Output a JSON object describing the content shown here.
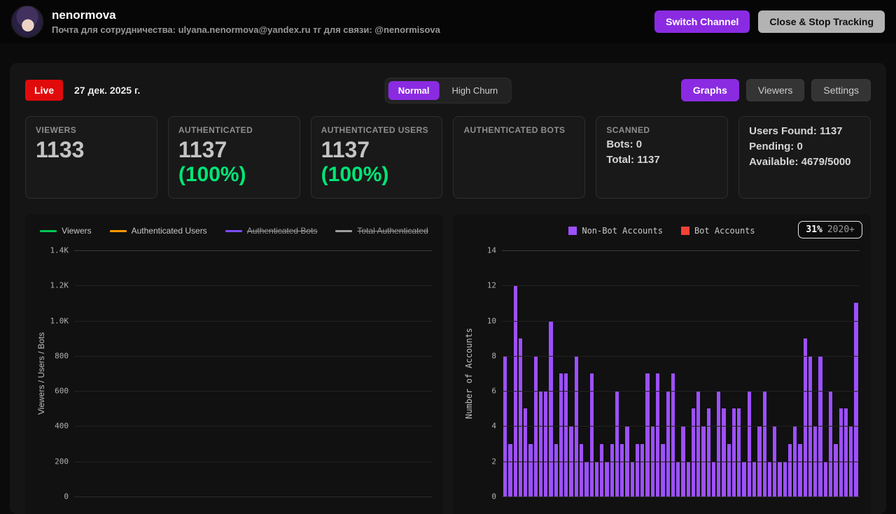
{
  "header": {
    "channel_name": "nenormova",
    "subtitle": "Почта для сотрудничества: ulyana.nenormova@yandex.ru тг для связи: @nenormisova",
    "switch_channel_label": "Switch Channel",
    "close_stop_label": "Close & Stop Tracking"
  },
  "controls": {
    "live_label": "Live",
    "date": "27 дек. 2025 г.",
    "mode_normal": "Normal",
    "mode_high_churn": "High Churn",
    "graphs_label": "Graphs",
    "viewers_label": "Viewers",
    "settings_label": "Settings"
  },
  "stats": {
    "viewers": {
      "label": "VIEWERS",
      "value": "1133"
    },
    "authenticated": {
      "label": "AUTHENTICATED",
      "value": "1137",
      "percent": "(100%)"
    },
    "authenticated_users": {
      "label": "AUTHENTICATED USERS",
      "value": "1137",
      "percent": "(100%)"
    },
    "authenticated_bots": {
      "label": "AUTHENTICATED BOTS"
    },
    "scanned": {
      "label": "SCANNED",
      "bots": "Bots: 0",
      "total": "Total: 1137"
    },
    "summary": {
      "users_found": "Users Found: 1137",
      "pending": "Pending: 0",
      "available": "Available: 4679/5000"
    }
  },
  "colors": {
    "accent_purple": "#8a2be2",
    "live_red": "#e10b0b",
    "success_green": "#00e676"
  },
  "chart_data": [
    {
      "type": "line",
      "title": "",
      "xlabel": "",
      "ylabel": "Viewers / Users / Bots",
      "ylim": [
        0,
        1400
      ],
      "yticks": [
        "1.4K",
        "1.2K",
        "1.0K",
        "800",
        "600",
        "400",
        "200",
        "0"
      ],
      "grid": true,
      "legend_position": "top",
      "legend": [
        {
          "label": "Viewers",
          "color": "#00c853",
          "hidden": false
        },
        {
          "label": "Authenticated Users",
          "color": "#ff9800",
          "hidden": false
        },
        {
          "label": "Authenticated Bots",
          "color": "#7c4dff",
          "hidden": true
        },
        {
          "label": "Total Authenticated",
          "color": "#9e9e9e",
          "hidden": true
        }
      ],
      "series": [
        {
          "name": "Viewers",
          "values": []
        },
        {
          "name": "Authenticated Users",
          "values": []
        },
        {
          "name": "Authenticated Bots",
          "values": []
        },
        {
          "name": "Total Authenticated",
          "values": []
        }
      ]
    },
    {
      "type": "bar",
      "title": "",
      "xlabel": "",
      "ylabel": "Number of Accounts",
      "ylim": [
        0,
        14
      ],
      "yticks": [
        "14",
        "12",
        "10",
        "8",
        "6",
        "4",
        "2",
        "0"
      ],
      "grid": true,
      "legend_position": "top",
      "badge": {
        "percent": "31%",
        "suffix": "2020+"
      },
      "legend": [
        {
          "label": "Non-Bot Accounts",
          "color": "#9d50ff",
          "hidden": false
        },
        {
          "label": "Bot Accounts",
          "color": "#f44336",
          "hidden": false
        }
      ],
      "values": [
        8,
        3,
        12,
        9,
        5,
        3,
        8,
        6,
        6,
        10,
        3,
        7,
        7,
        4,
        8,
        3,
        2,
        7,
        2,
        3,
        2,
        3,
        6,
        3,
        4,
        2,
        3,
        3,
        7,
        4,
        7,
        3,
        6,
        7,
        2,
        4,
        2,
        5,
        6,
        4,
        5,
        2,
        6,
        5,
        3,
        5,
        5,
        2,
        6,
        2,
        4,
        6,
        2,
        4,
        2,
        2,
        3,
        4,
        3,
        9,
        8,
        4,
        8,
        2,
        6,
        3,
        5,
        5,
        4,
        11
      ]
    }
  ]
}
